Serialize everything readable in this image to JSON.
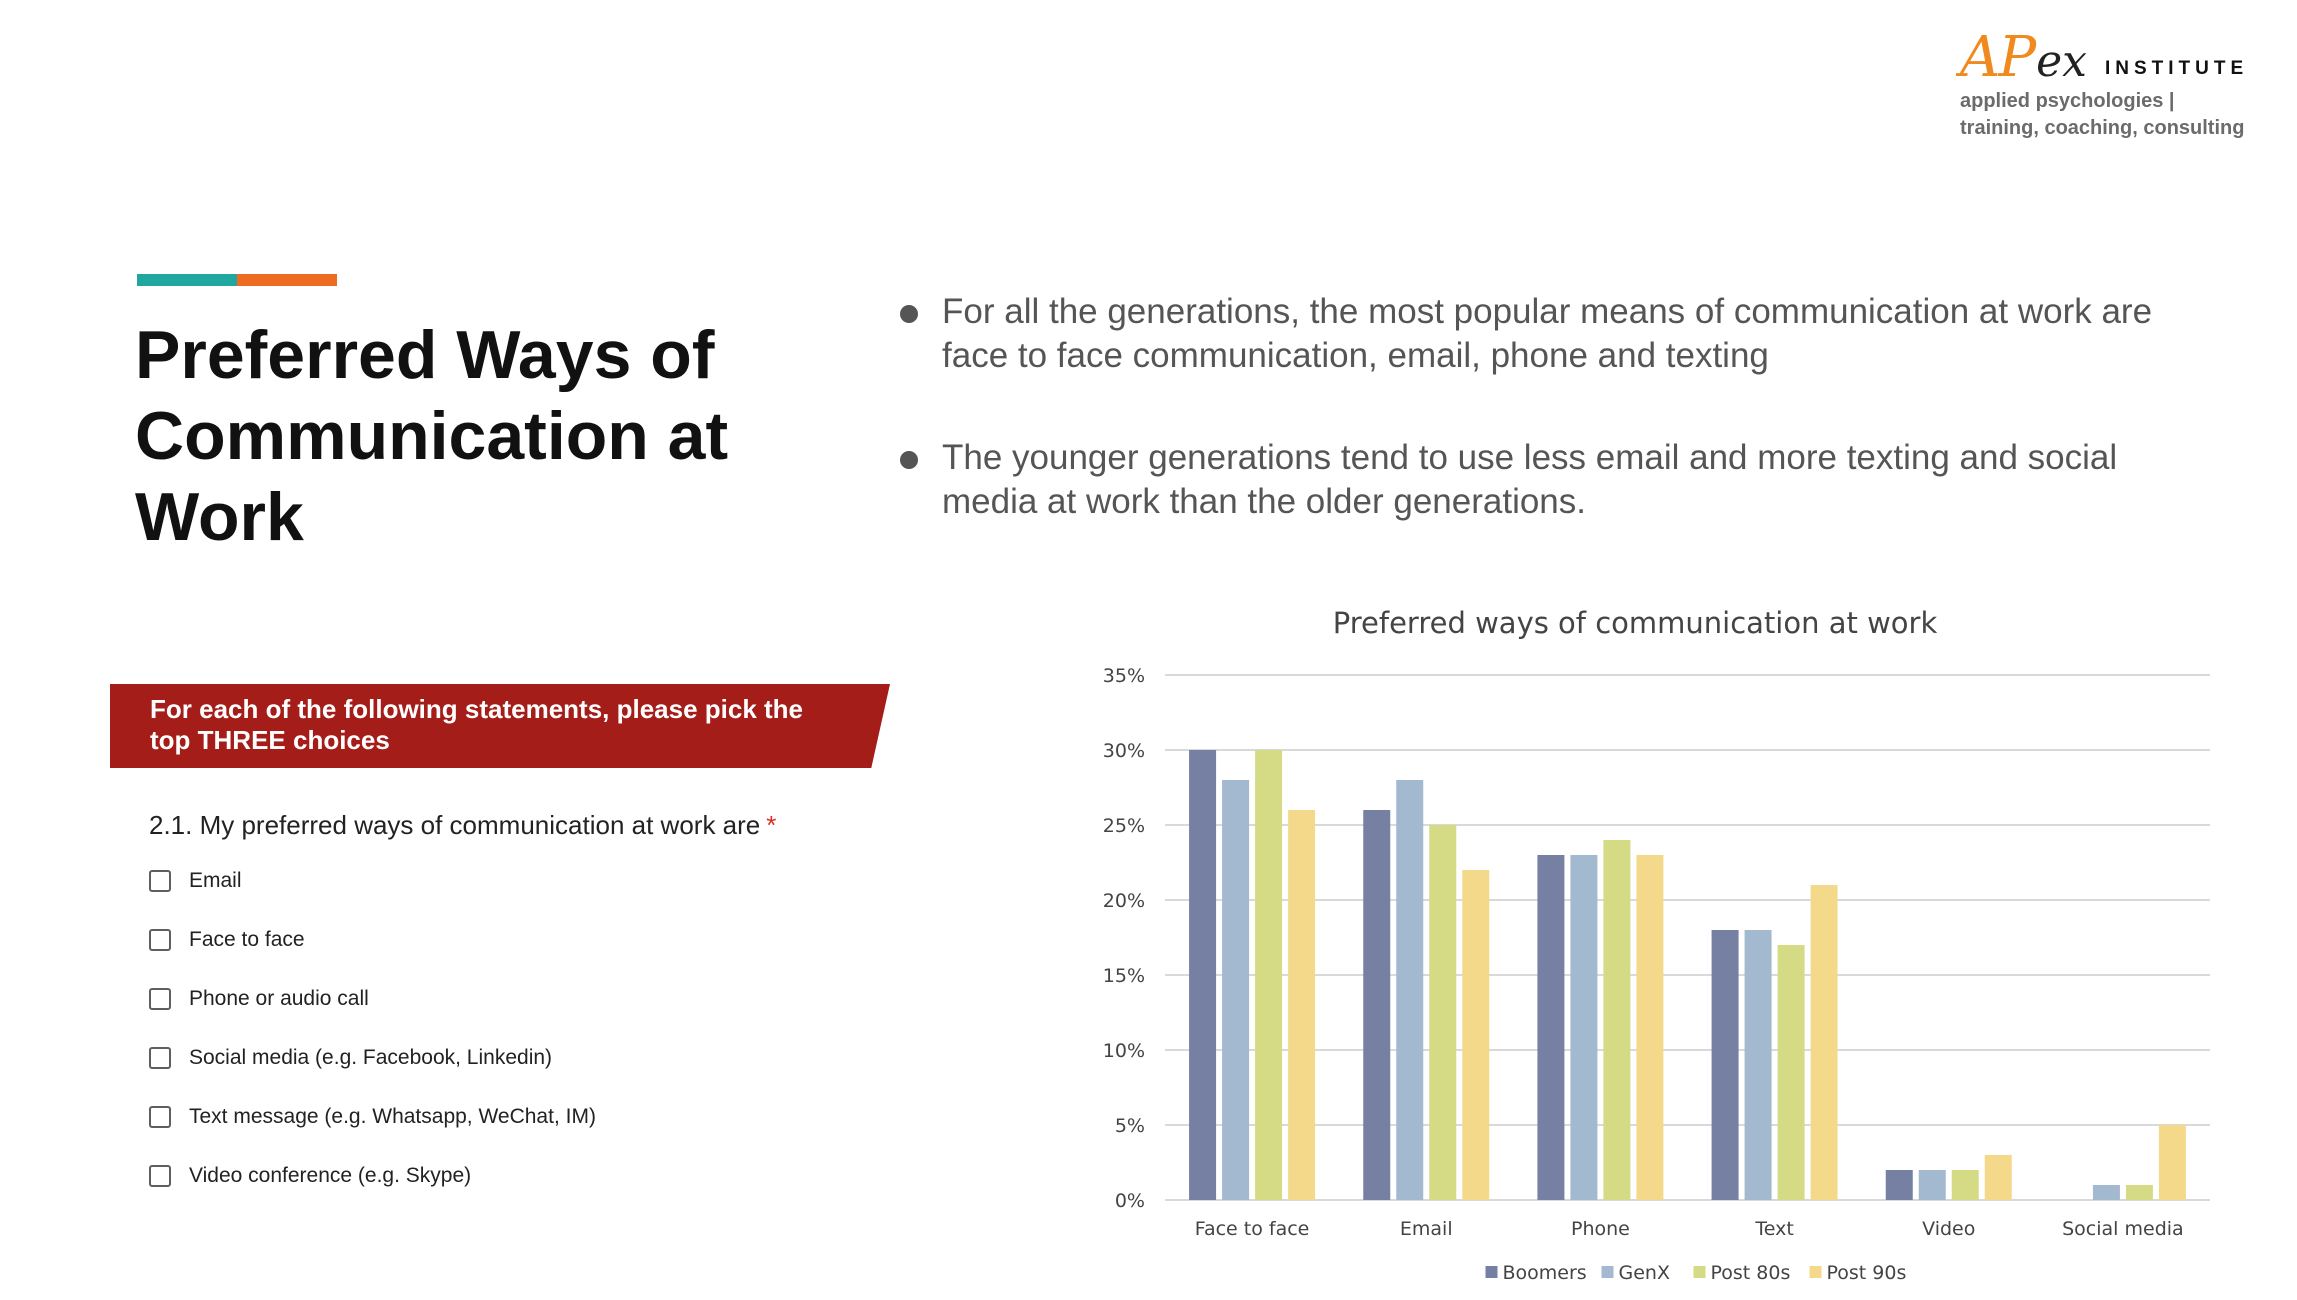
{
  "logo": {
    "brand_ap": "AP",
    "brand_ex": "ex",
    "brand_institute": "INSTITUTE",
    "tagline1": "applied psychologies |",
    "tagline2": "training, coaching, consulting"
  },
  "accent_colors": {
    "teal": "#1fa7a0",
    "orange": "#ee6b22"
  },
  "page_title": "Preferred Ways of Communication at Work",
  "bullets": [
    "For all the generations, the most popular means of communication at work are face to face communication, email, phone and texting",
    "The younger generations tend to use less email and more texting and social media at work than the older generations."
  ],
  "survey": {
    "banner": "For each of the following statements, please pick the top THREE choices",
    "banner_color": "#a51d18",
    "question": "2.1. My preferred ways of communication at work are",
    "required_mark": "*",
    "options": [
      "Email",
      "Face to face",
      "Phone or audio call",
      "Social media (e.g. Facebook, Linkedin)",
      "Text message (e.g. Whatsapp, WeChat, IM)",
      "Video conference (e.g. Skype)"
    ]
  },
  "chart_data": {
    "type": "bar",
    "title": "Preferred ways of communication at work",
    "categories": [
      "Face to face",
      "Email",
      "Phone",
      "Text",
      "Video",
      "Social media"
    ],
    "series": [
      {
        "name": "Boomers",
        "color": "#7580a3",
        "values": [
          30,
          26,
          23,
          18,
          2,
          0
        ]
      },
      {
        "name": "GenX",
        "color": "#a3b9cf",
        "values": [
          28,
          28,
          23,
          18,
          2,
          1
        ]
      },
      {
        "name": "Post 80s",
        "color": "#d4db84",
        "values": [
          30,
          25,
          24,
          17,
          2,
          1
        ]
      },
      {
        "name": "Post 90s",
        "color": "#f5d98a",
        "values": [
          26,
          22,
          23,
          21,
          3,
          5
        ]
      }
    ],
    "ylim": [
      0,
      35
    ],
    "yticks": [
      "0%",
      "5%",
      "10%",
      "15%",
      "20%",
      "25%",
      "30%",
      "35%"
    ],
    "ytick_values": [
      0,
      5,
      10,
      15,
      20,
      25,
      30,
      35
    ],
    "grid": true,
    "legend": "bottom",
    "xlabel": "",
    "ylabel": ""
  }
}
